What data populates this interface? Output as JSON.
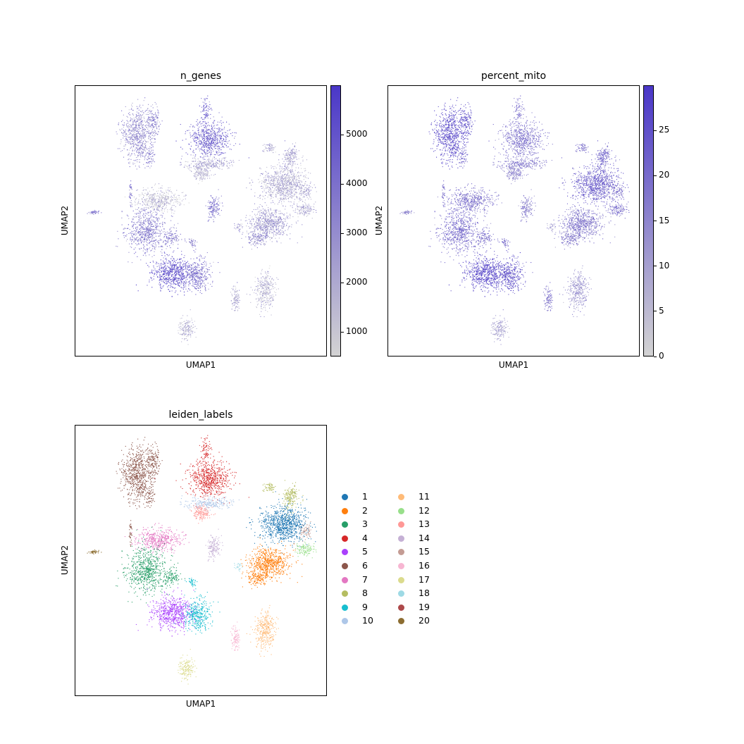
{
  "chart_data": [
    {
      "type": "scatter",
      "title": "n_genes",
      "xlabel": "UMAP1",
      "ylabel": "UMAP2",
      "colorbar": {
        "ticks": [
          "1000",
          "2000",
          "3000",
          "4000",
          "5000"
        ],
        "tick_values": [
          1000,
          2000,
          3000,
          4000,
          5000
        ],
        "min": 500,
        "max": 6000,
        "cmap": [
          "#d3d3d3",
          "#4a37c8"
        ]
      }
    },
    {
      "type": "scatter",
      "title": "percent_mito",
      "xlabel": "UMAP1",
      "ylabel": "UMAP2",
      "colorbar": {
        "ticks": [
          "0",
          "5",
          "10",
          "15",
          "20",
          "25"
        ],
        "tick_values": [
          0,
          5,
          10,
          15,
          20,
          25
        ],
        "min": 0,
        "max": 30,
        "cmap": [
          "#d3d3d3",
          "#4a37c8"
        ]
      }
    },
    {
      "type": "scatter",
      "title": "leiden_labels",
      "xlabel": "UMAP1",
      "ylabel": "UMAP2",
      "legend": {
        "placement": "right",
        "entries": [
          {
            "label": "1",
            "color": "#1f77b4"
          },
          {
            "label": "2",
            "color": "#ff7f0e"
          },
          {
            "label": "3",
            "color": "#279e68"
          },
          {
            "label": "4",
            "color": "#d62728"
          },
          {
            "label": "5",
            "color": "#aa40fc"
          },
          {
            "label": "6",
            "color": "#8c564b"
          },
          {
            "label": "7",
            "color": "#e377c2"
          },
          {
            "label": "8",
            "color": "#b5bd61"
          },
          {
            "label": "9",
            "color": "#17becf"
          },
          {
            "label": "10",
            "color": "#aec7e8"
          },
          {
            "label": "11",
            "color": "#ffbb78"
          },
          {
            "label": "12",
            "color": "#98df8a"
          },
          {
            "label": "13",
            "color": "#ff9896"
          },
          {
            "label": "14",
            "color": "#c5b0d5"
          },
          {
            "label": "15",
            "color": "#c49c94"
          },
          {
            "label": "16",
            "color": "#f7b6d2"
          },
          {
            "label": "17",
            "color": "#dbdb8d"
          },
          {
            "label": "18",
            "color": "#9edae5"
          },
          {
            "label": "19",
            "color": "#ad494a"
          },
          {
            "label": "20",
            "color": "#8c6d31"
          }
        ]
      }
    }
  ]
}
